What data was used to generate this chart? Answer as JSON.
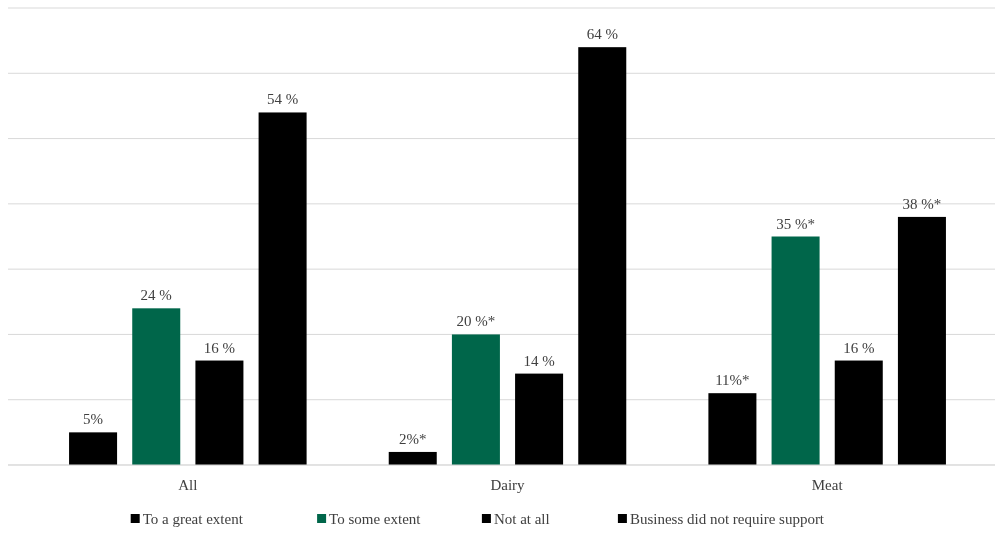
{
  "chart_data": {
    "type": "bar",
    "categories": [
      "All",
      "Dairy",
      "Meat"
    ],
    "series": [
      {
        "name": "To a great extent",
        "color": "#000000",
        "values": [
          5,
          2,
          11
        ],
        "value_labels": [
          "5%",
          "2%*",
          "11%*"
        ]
      },
      {
        "name": "To some extent",
        "color": "#00664a",
        "values": [
          24,
          20,
          35
        ],
        "value_labels": [
          "24 %",
          "20 %*",
          "35 %*"
        ]
      },
      {
        "name": "Not at all",
        "color": "#000000",
        "values": [
          16,
          14,
          16
        ],
        "value_labels": [
          "16 %",
          "14 %",
          "16 %"
        ]
      },
      {
        "name": "Business did not require support",
        "color": "#000000",
        "values": [
          54,
          64,
          38
        ],
        "value_labels": [
          "54 %",
          "64 %",
          "38 %*"
        ]
      }
    ],
    "ylim": [
      0,
      70
    ],
    "yticks": [
      {
        "value": 0,
        "label": null
      },
      {
        "value": 10,
        "label": null
      },
      {
        "value": 20,
        "label": null
      },
      {
        "value": 30,
        "label": null
      },
      {
        "value": 40,
        "label": null
      },
      {
        "value": 50,
        "label": null
      },
      {
        "value": 60,
        "label": null
      },
      {
        "value": 70,
        "label": null
      }
    ],
    "tick_labels": "x",
    "grid": "y",
    "legend": "bottom"
  }
}
